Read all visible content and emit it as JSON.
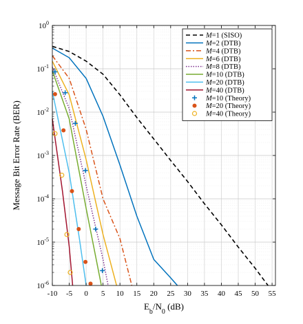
{
  "chart_data": {
    "type": "line",
    "xlabel_main": "E",
    "xlabel_sub1": "b",
    "xlabel_mid": "/N",
    "xlabel_sub2": "0",
    "xlabel_unit": " (dB)",
    "ylabel": "Message Bit Error Rate (BER)",
    "xlim": [
      -10,
      56
    ],
    "ylim_log10": [
      -6,
      0
    ],
    "y_scale": "log",
    "grid": true,
    "legend_position": "top-right",
    "x_ticks": [
      "-10",
      "-5",
      "0",
      "5",
      "10",
      "15",
      "20",
      "25",
      "30",
      "35",
      "40",
      "45",
      "50",
      "55"
    ],
    "y_ticks": [
      {
        "exp": 0,
        "base": "10",
        "sup": "0"
      },
      {
        "exp": -1,
        "base": "10",
        "sup": "-1"
      },
      {
        "exp": -2,
        "base": "10",
        "sup": "-2"
      },
      {
        "exp": -3,
        "base": "10",
        "sup": "-3"
      },
      {
        "exp": -4,
        "base": "10",
        "sup": "-4"
      },
      {
        "exp": -5,
        "base": "10",
        "sup": "-5"
      },
      {
        "exp": -6,
        "base": "10",
        "sup": "-6"
      }
    ],
    "series": [
      {
        "name_var": "M",
        "name_rest": "=1 (SISO)",
        "style": "dashed",
        "color": "#000000",
        "x": [
          -10,
          -5,
          0,
          5,
          10,
          15,
          20,
          25,
          30,
          35,
          40,
          45,
          50,
          53.8
        ],
        "y": [
          0.33,
          0.25,
          0.15,
          0.075,
          0.025,
          0.0075,
          0.0024,
          0.00077,
          0.00025,
          7.7e-05,
          2.5e-05,
          7.7e-06,
          2.5e-06,
          1e-06
        ]
      },
      {
        "name_var": "M",
        "name_rest": "=2 (DTB)",
        "style": "solid",
        "color": "#0072BD",
        "x": [
          -10,
          -5,
          0,
          5,
          10,
          15,
          20,
          25,
          27
        ],
        "y": [
          0.3,
          0.18,
          0.06,
          0.008,
          0.0006,
          4e-05,
          4e-06,
          1.5e-06,
          1e-06
        ]
      },
      {
        "name_var": "M",
        "name_rest": "=4 (DTB)",
        "style": "dashdot",
        "color": "#D95319",
        "x": [
          -10,
          -5,
          0,
          5,
          10,
          13.5
        ],
        "y": [
          0.2,
          0.06,
          0.004,
          0.0001,
          1.2e-05,
          1e-06
        ]
      },
      {
        "name_var": "M",
        "name_rest": "=6 (DTB)",
        "style": "solid",
        "color": "#EDB120",
        "x": [
          -10,
          -5,
          0,
          5,
          9
        ],
        "y": [
          0.15,
          0.025,
          0.0008,
          1.5e-05,
          1e-06
        ]
      },
      {
        "name_var": "M",
        "name_rest": "=8 (DTB)",
        "style": "dotted",
        "color": "#7E2F8E",
        "x": [
          -10,
          -5,
          0,
          5,
          6.5
        ],
        "y": [
          0.11,
          0.012,
          0.0002,
          4e-06,
          1e-06
        ]
      },
      {
        "name_var": "M",
        "name_rest": "=10 (DTB)",
        "style": "solid",
        "color": "#77AC30",
        "x": [
          -10,
          -5,
          0,
          4.5
        ],
        "y": [
          0.09,
          0.007,
          6e-05,
          1e-06
        ]
      },
      {
        "name_var": "M",
        "name_rest": "=20 (DTB)",
        "style": "solid",
        "color": "#4DBEEE",
        "x": [
          -10,
          -5,
          -2,
          0
        ],
        "y": [
          0.03,
          0.0004,
          1.2e-05,
          1e-06
        ]
      },
      {
        "name_var": "M",
        "name_rest": "=40 (DTB)",
        "style": "solid",
        "color": "#A2142F",
        "x": [
          -10,
          -7,
          -5,
          -4
        ],
        "y": [
          0.007,
          0.00015,
          8e-06,
          1e-06
        ]
      }
    ],
    "theory_series": [
      {
        "name_var": "M",
        "name_rest": "=10 (Theory)",
        "marker": "plus",
        "color": "#0072BD",
        "x": [
          -9.2,
          -6.2,
          -3.2,
          -0.2,
          2.8,
          4.8
        ],
        "y": [
          0.085,
          0.028,
          0.0055,
          0.00045,
          2e-05,
          2.2e-06
        ]
      },
      {
        "name_var": "M",
        "name_rest": "=20 (Theory)",
        "marker": "circle-filled",
        "color": "#D95319",
        "x": [
          -9.2,
          -6.7,
          -4.2,
          -2.2,
          -0.2,
          1.3
        ],
        "y": [
          0.026,
          0.0038,
          0.00015,
          2e-05,
          3.5e-06,
          1.1e-06
        ]
      },
      {
        "name_var": "M",
        "name_rest": "=40 (Theory)",
        "marker": "circle-open",
        "color": "#EDB120",
        "x": [
          -9.2,
          -7.2,
          -5.7,
          -4.7
        ],
        "y": [
          0.0032,
          0.00035,
          1.5e-05,
          2e-06
        ]
      }
    ]
  }
}
